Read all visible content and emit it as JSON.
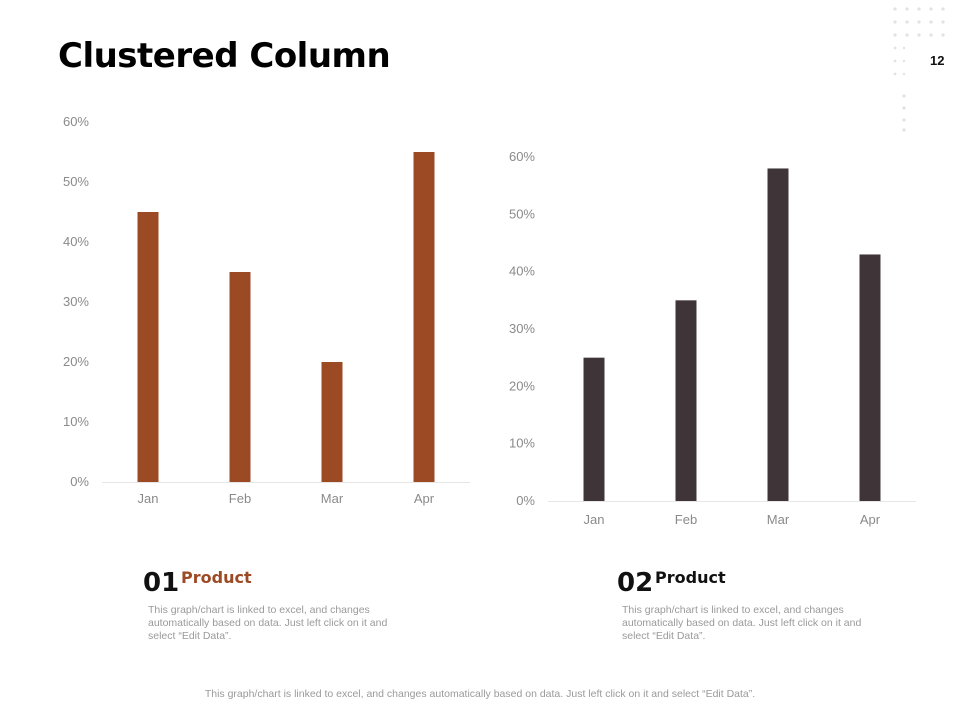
{
  "title": "Clustered Column",
  "page_number": "12",
  "colors": {
    "accent_brown": "#9c4a24",
    "dark": "#3f3538",
    "muted_text": "#9a9a9a"
  },
  "chart_data": [
    {
      "type": "bar",
      "categories": [
        "Jan",
        "Feb",
        "Mar",
        "Apr"
      ],
      "values": [
        45,
        35,
        20,
        55
      ],
      "y_ticks": [
        "0%",
        "10%",
        "20%",
        "30%",
        "40%",
        "50%",
        "60%"
      ],
      "ylim": [
        0,
        60
      ],
      "unit": "%",
      "grid": false,
      "color": "#9c4a24"
    },
    {
      "type": "bar",
      "categories": [
        "Jan",
        "Feb",
        "Mar",
        "Apr"
      ],
      "values": [
        25,
        35,
        58,
        43
      ],
      "y_ticks": [
        "0%",
        "10%",
        "20%",
        "30%",
        "40%",
        "50%",
        "60%"
      ],
      "ylim": [
        0,
        60
      ],
      "unit": "%",
      "grid": false,
      "color": "#3f3538"
    }
  ],
  "products": [
    {
      "number": "01",
      "name": "Product",
      "color": "#9c4a24",
      "description": "This graph/chart is linked to excel, and changes automatically based on data. Just left click on it and select “Edit Data”."
    },
    {
      "number": "02",
      "name": "Product",
      "color": "#3f3538",
      "description": "This graph/chart is linked to excel, and changes automatically based on data. Just left click on it and select “Edit Data”."
    }
  ],
  "footer_note": "This graph/chart is linked to excel, and changes automatically based on data. Just left click on it and select “Edit Data”."
}
